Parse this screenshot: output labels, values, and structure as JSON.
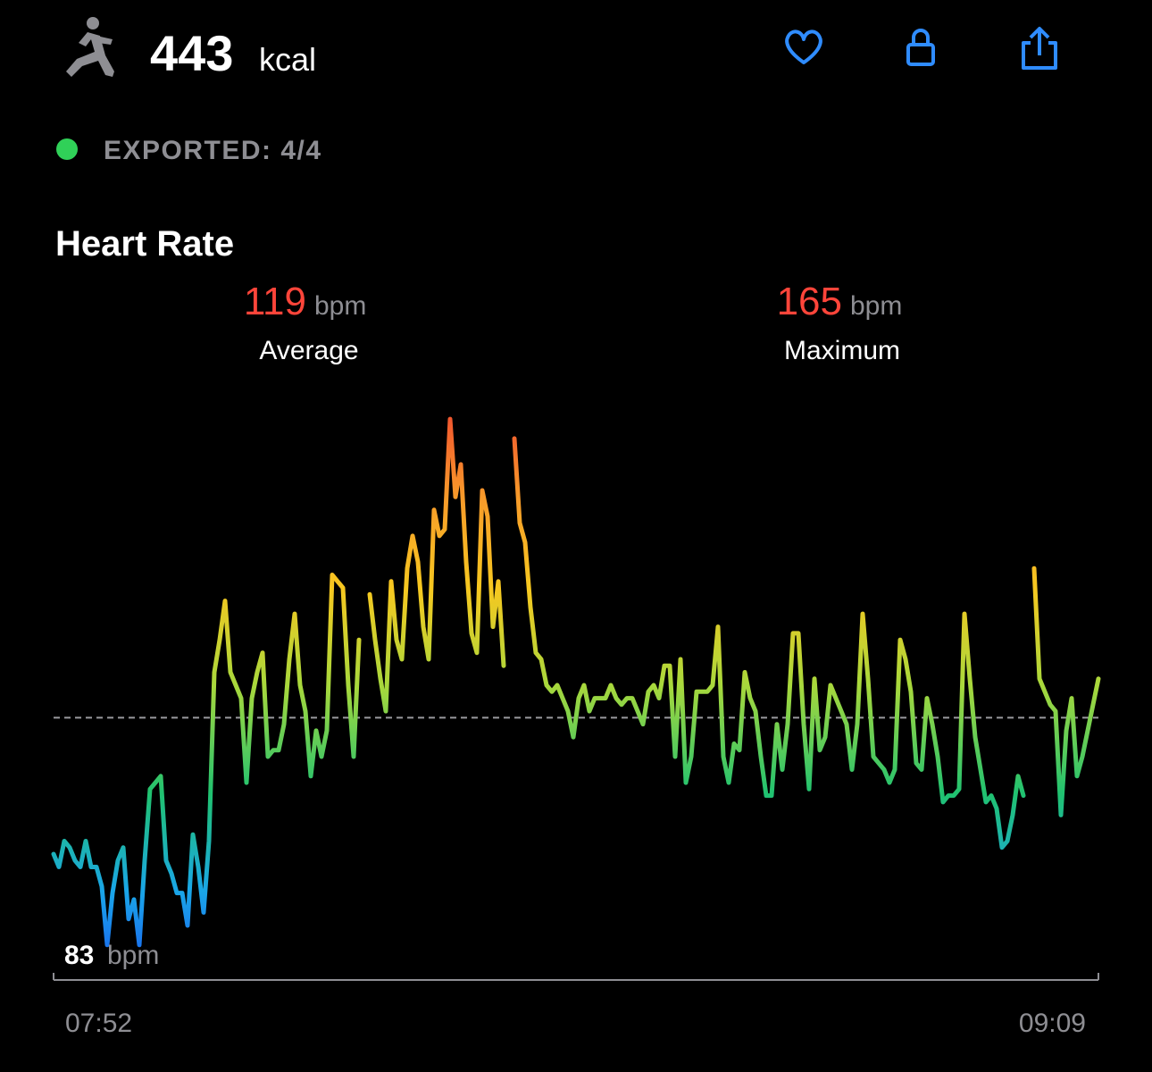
{
  "header": {
    "calories": 443,
    "calories_unit": "kcal",
    "export_status": "EXPORTED: 4/4"
  },
  "chart_data": {
    "type": "line",
    "title": "Heart Rate",
    "unit": "bpm",
    "average": 119,
    "average_label": "Average",
    "maximum": 165,
    "maximum_label": "Maximum",
    "minimum": 83,
    "categories": [
      "07:52",
      null,
      null,
      null,
      null,
      null,
      null,
      null,
      null,
      null,
      null,
      null,
      null,
      null,
      null,
      null,
      null,
      null,
      null,
      null,
      null,
      null,
      null,
      null,
      null,
      null,
      null,
      null,
      null,
      null,
      null,
      null,
      null,
      null,
      null,
      null,
      null,
      null,
      null,
      null,
      null,
      null,
      null,
      null,
      null,
      null,
      null,
      null,
      null,
      null,
      null,
      null,
      null,
      null,
      null,
      null,
      null,
      null,
      null,
      null,
      null,
      null,
      null,
      null,
      null,
      null,
      null,
      null,
      null,
      null,
      null,
      null,
      null,
      null,
      null,
      null,
      null,
      null,
      null,
      null,
      null,
      null,
      null,
      null,
      null,
      null,
      null,
      null,
      null,
      null,
      null,
      null,
      null,
      null,
      null,
      null,
      null,
      null,
      null,
      null,
      null,
      null,
      null,
      null,
      null,
      null,
      null,
      null,
      null,
      null,
      null,
      null,
      null,
      null,
      null,
      null,
      null,
      null,
      null,
      null,
      null,
      null,
      null,
      null,
      null,
      null,
      null,
      null,
      null,
      null,
      null,
      null,
      null,
      null,
      null,
      null,
      null,
      null,
      null,
      null,
      null,
      null,
      null,
      null,
      null,
      null,
      null,
      null,
      null,
      null,
      null,
      null,
      null,
      null,
      null,
      null,
      null,
      null,
      null,
      null,
      null,
      null,
      null,
      null,
      null,
      null,
      null,
      null,
      null,
      null,
      null,
      null,
      null,
      null,
      null,
      null,
      null,
      null,
      null,
      null,
      null,
      null,
      null,
      null,
      null,
      null,
      null,
      null,
      null,
      null,
      null,
      null,
      null,
      null,
      null,
      "09:09"
    ],
    "values": [
      98,
      96,
      100,
      99,
      97,
      96,
      100,
      96,
      96,
      93,
      84,
      92,
      97,
      99,
      88,
      91,
      84,
      97,
      108,
      109,
      110,
      97,
      95,
      92,
      92,
      87,
      101,
      96,
      89,
      100,
      126,
      131,
      137,
      126,
      124,
      122,
      109,
      122,
      126,
      129,
      113,
      114,
      114,
      118,
      128,
      135,
      124,
      120,
      110,
      117,
      113,
      117,
      141,
      140,
      139,
      124,
      113,
      131,
      null,
      138,
      131,
      125,
      120,
      140,
      131,
      128,
      142,
      147,
      143,
      133,
      128,
      151,
      147,
      148,
      165,
      153,
      158,
      143,
      132,
      129,
      154,
      150,
      133,
      140,
      127,
      null,
      162,
      149,
      146,
      136,
      129,
      128,
      124,
      123,
      124,
      122,
      120,
      116,
      122,
      124,
      120,
      122,
      122,
      122,
      124,
      122,
      121,
      122,
      122,
      120,
      118,
      123,
      124,
      122,
      127,
      127,
      113,
      128,
      109,
      113,
      123,
      123,
      123,
      124,
      133,
      113,
      109,
      115,
      114,
      126,
      122,
      120,
      113,
      107,
      107,
      118,
      111,
      118,
      132,
      132,
      118,
      108,
      125,
      114,
      116,
      124,
      122,
      120,
      118,
      111,
      118,
      135,
      125,
      113,
      112,
      111,
      109,
      111,
      131,
      128,
      123,
      112,
      111,
      122,
      118,
      113,
      106,
      107,
      107,
      108,
      135,
      125,
      116,
      111,
      106,
      107,
      105,
      99,
      100,
      104,
      110,
      107,
      null,
      142,
      125,
      123,
      121,
      120,
      104,
      117,
      122,
      110,
      113,
      117,
      121,
      125
    ],
    "ylim": [
      78.6,
      169
    ]
  }
}
